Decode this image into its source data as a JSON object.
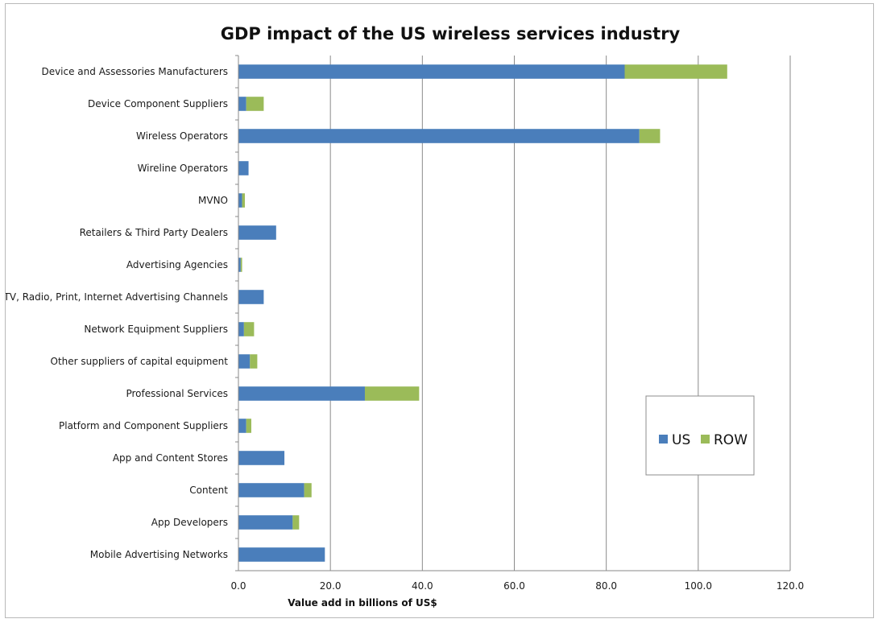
{
  "chart_data": {
    "type": "bar",
    "orientation": "horizontal",
    "stacked": true,
    "title": "GDP impact of the US wireless services industry",
    "xlabel": "Value add in billions of US$",
    "ylabel": "",
    "xlim": [
      0,
      120
    ],
    "x_ticks": [
      "0.0",
      "20.0",
      "40.0",
      "60.0",
      "80.0",
      "100.0",
      "120.0"
    ],
    "grid": "vertical",
    "legend_position": "right",
    "categories": [
      "Device and Assessories Manufacturers",
      "Device Component Suppliers",
      "Wireless Operators",
      "Wireline Operators",
      "MVNO",
      "Retailers & Third Party Dealers",
      "Advertising Agencies",
      "TV, Radio, Print, Internet Advertising Channels",
      "Network Equipment Suppliers",
      "Other suppliers of capital equipment",
      "Professional Services",
      "Platform and Component Suppliers",
      "App and Content Stores",
      "Content",
      "App Developers",
      "Mobile Advertising Networks"
    ],
    "series": [
      {
        "name": "US",
        "color": "#4a7ebb",
        "values": [
          84.0,
          1.7,
          87.2,
          2.2,
          0.8,
          8.2,
          0.5,
          5.5,
          1.2,
          2.5,
          27.5,
          1.7,
          10.0,
          14.3,
          11.8,
          18.8
        ]
      },
      {
        "name": "ROW",
        "color": "#9bbb59",
        "values": [
          22.3,
          3.8,
          4.5,
          0.0,
          0.6,
          0.0,
          0.3,
          0.0,
          2.2,
          1.6,
          11.8,
          1.1,
          0.0,
          1.6,
          1.4,
          0.0
        ]
      }
    ]
  }
}
